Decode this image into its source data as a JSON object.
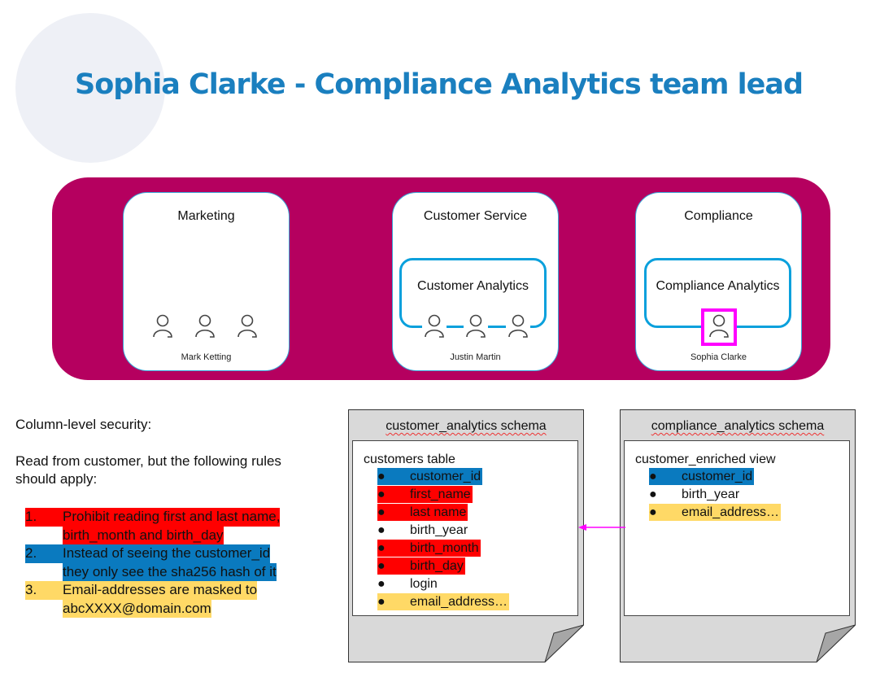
{
  "title": "Sophia Clarke - Compliance Analytics team lead",
  "colors": {
    "title": "#1a7fbf",
    "band": "#b5005f",
    "blue": "#0a7abf",
    "red": "#ff0000",
    "yellow": "#ffd966",
    "highlight": "#ff00ff",
    "arrow": "#ff00ff"
  },
  "departments": [
    {
      "title": "Marketing",
      "person": "Mark Ketting"
    },
    {
      "title": "Customer Service",
      "team": "Customer Analytics",
      "person": "Justin Martin"
    },
    {
      "title": "Compliance",
      "team": "Compliance Analytics",
      "person": "Sophia Clarke"
    }
  ],
  "notes": {
    "heading": "Column-level security:",
    "intro": "Read from customer, but the following rules should apply:",
    "rules": [
      {
        "num": "1.",
        "line1": "Prohibit reading first and last name,",
        "line2": "birth_month and birth_day",
        "color": "red"
      },
      {
        "num": "2.",
        "line1": "Instead of seeing the customer_id",
        "line2": "they only see the sha256 hash of it",
        "color": "blue"
      },
      {
        "num": "3.",
        "line1": "Email-addresses are masked to",
        "line2": "abcXXXX@domain.com",
        "color": "yellow"
      }
    ]
  },
  "schemas": [
    {
      "title": "customer_analytics schema",
      "object": "customers table",
      "columns": [
        {
          "name": "customer_id",
          "color": "blue"
        },
        {
          "name": "first_name",
          "color": "red"
        },
        {
          "name": "last name",
          "color": "red"
        },
        {
          "name": "birth_year",
          "color": "none"
        },
        {
          "name": "birth_month",
          "color": "red"
        },
        {
          "name": "birth_day",
          "color": "red"
        },
        {
          "name": "login",
          "color": "none"
        },
        {
          "name": "email_address…",
          "color": "yellow"
        }
      ]
    },
    {
      "title": "compliance_analytics schema",
      "object": "customer_enriched view",
      "columns": [
        {
          "name": "customer_id",
          "color": "blue"
        },
        {
          "name": "birth_year",
          "color": "none"
        },
        {
          "name": "email_address…",
          "color": "yellow"
        }
      ]
    }
  ],
  "bullet": "●"
}
